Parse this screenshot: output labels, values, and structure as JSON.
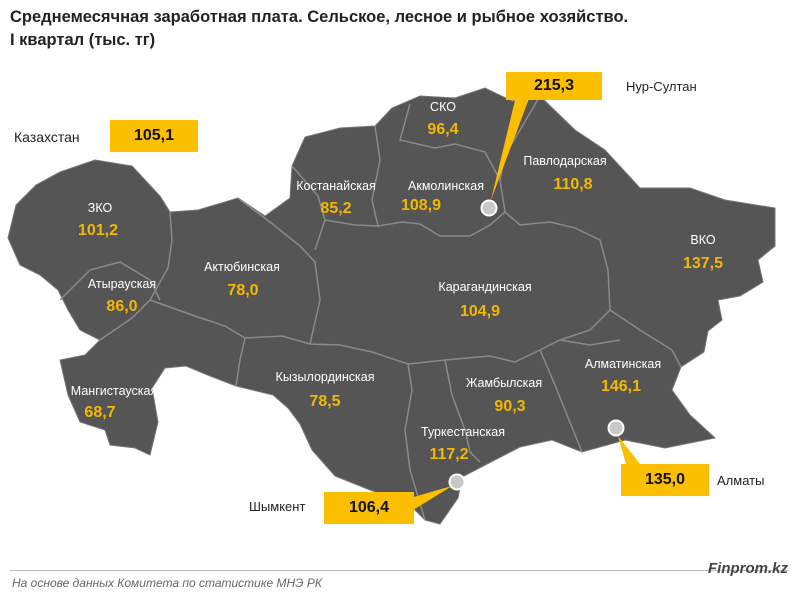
{
  "title": {
    "line1": "Среднемесячная заработная плата. Сельское, лесное и рыбное хозяйство.",
    "line2": "I квартал (тыс. тг)"
  },
  "national": {
    "label": "Казахстан",
    "value": "105,1"
  },
  "regions": {
    "zko": {
      "name": "ЗКО",
      "value": "101,2"
    },
    "atyrau": {
      "name": "Атырауская",
      "value": "86,0"
    },
    "mangystau": {
      "name": "Мангистауская",
      "value": "68,7"
    },
    "aktobe": {
      "name": "Актюбинская",
      "value": "78,0"
    },
    "kostanay": {
      "name": "Костанайская",
      "value": "85,2"
    },
    "sko": {
      "name": "СКО",
      "value": "96,4"
    },
    "akmola": {
      "name": "Акмолинская",
      "value": "108,9"
    },
    "pavlodar": {
      "name": "Павлодарская",
      "value": "110,8"
    },
    "vko": {
      "name": "ВКО",
      "value": "137,5"
    },
    "karaganda": {
      "name": "Карагандинская",
      "value": "104,9"
    },
    "kyzylorda": {
      "name": "Кызылординская",
      "value": "78,5"
    },
    "zhambyl": {
      "name": "Жамбылская",
      "value": "90,3"
    },
    "almaty_region": {
      "name": "Алматинская",
      "value": "146,1"
    },
    "turkestan": {
      "name": "Туркестанская",
      "value": "117,2"
    }
  },
  "cities": {
    "nur_sultan": {
      "name": "Нур-Султан",
      "value": "215,3"
    },
    "almaty": {
      "name": "Алматы",
      "value": "135,0"
    },
    "shymkent": {
      "name": "Шымкент",
      "value": "106,4"
    }
  },
  "footer": {
    "source": "На основе данных  Комитета по статистике МНЭ РК",
    "brand": "Finprom.kz"
  },
  "colors": {
    "map_fill": "#555555",
    "border": "#8a8a8a",
    "value_text": "#f5b800",
    "highlight_box": "#fbbf00"
  }
}
